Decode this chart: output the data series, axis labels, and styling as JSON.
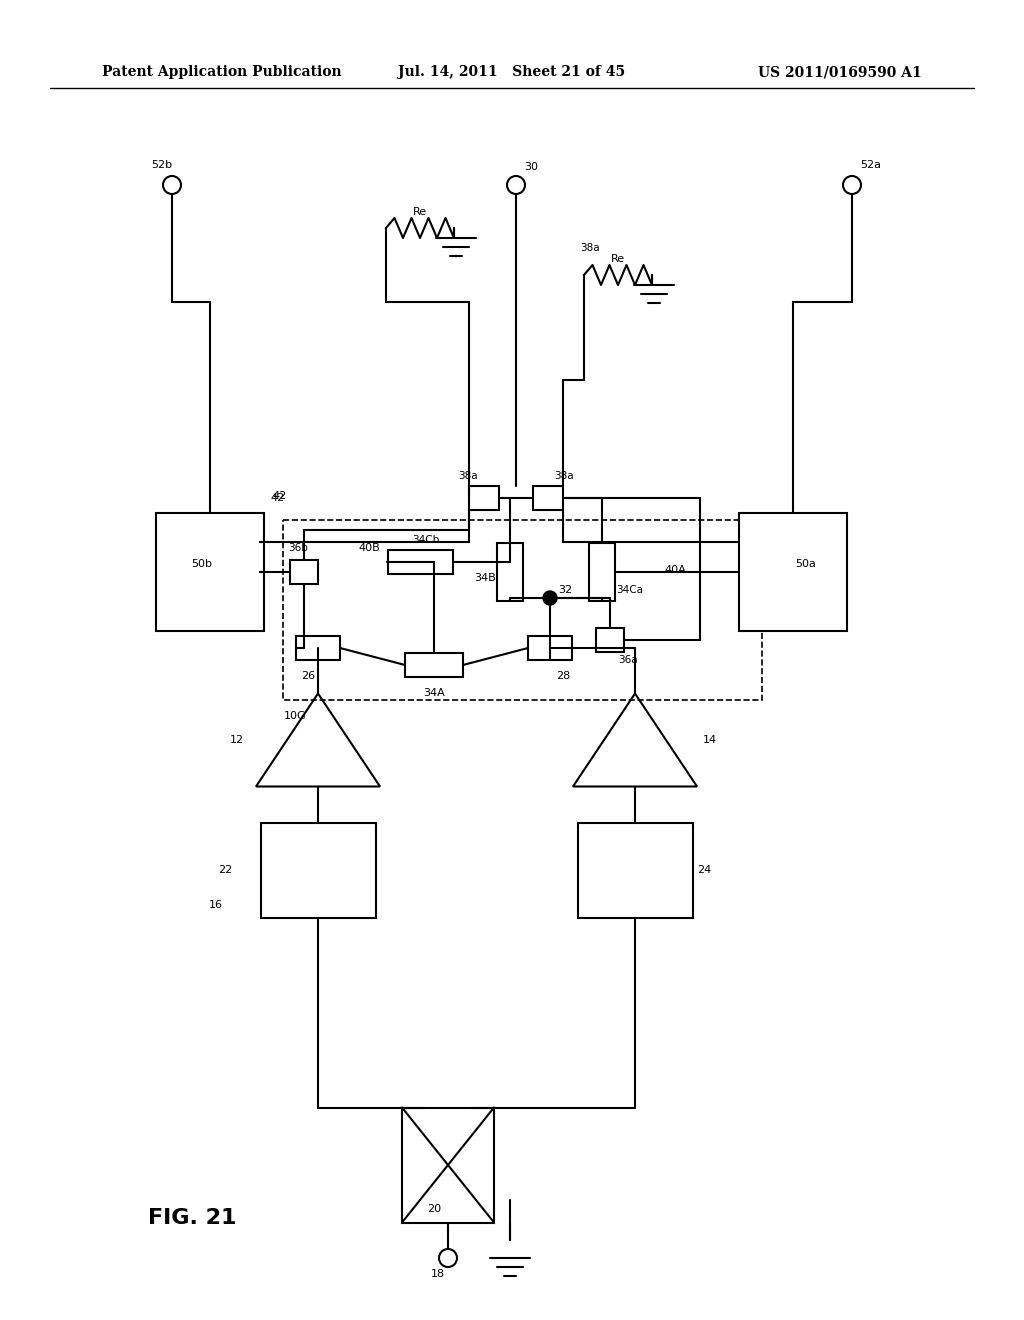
{
  "header_left": "Patent Application Publication",
  "header_mid": "Jul. 14, 2011   Sheet 21 of 45",
  "header_right": "US 2011/0169590 A1",
  "fig_label": "FIG. 21",
  "bg_color": "#ffffff"
}
